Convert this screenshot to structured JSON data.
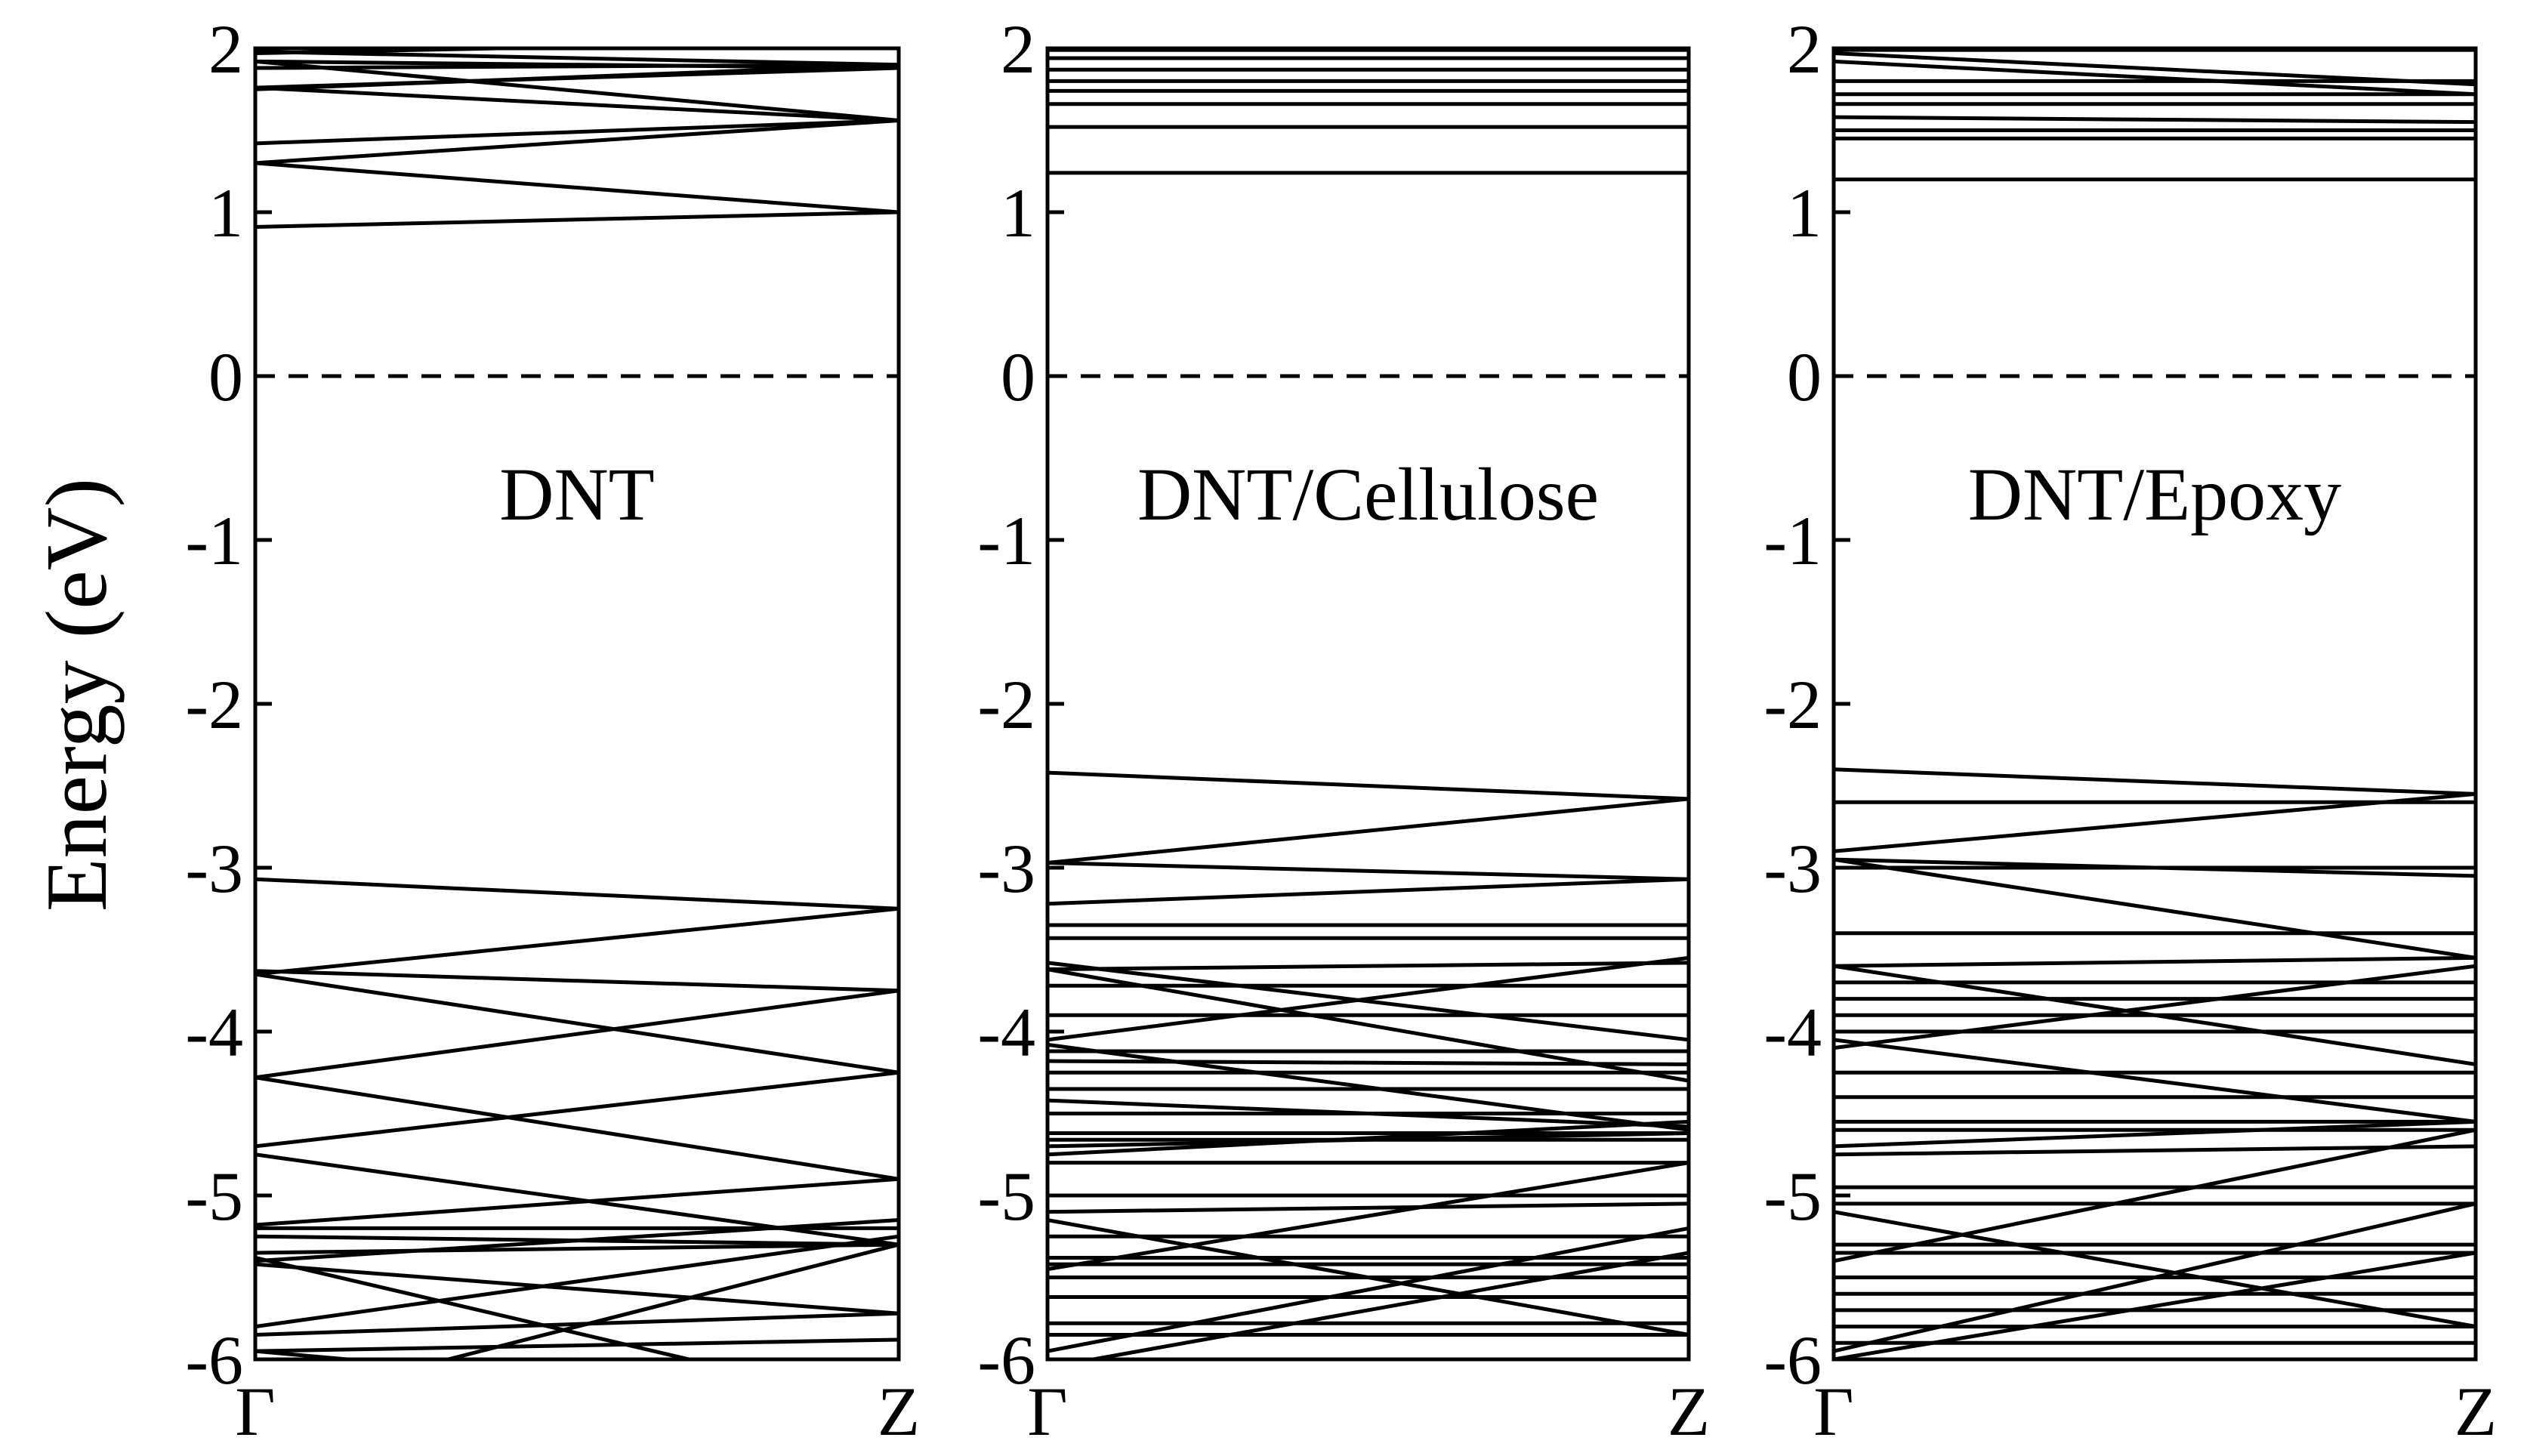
{
  "colors": {
    "line": "#000000",
    "background": "#ffffff"
  },
  "chart_data": [
    {
      "type": "line",
      "title": "DNT",
      "ylabel": "Energy (eV)",
      "xlabel": "",
      "x_ticks": [
        "Γ",
        "Z"
      ],
      "ylim": [
        -6,
        2
      ],
      "y_ticks": [
        "2",
        "1",
        "0",
        "-1",
        "-2",
        "-3",
        "-4",
        "-5",
        "-6"
      ],
      "fermi_level": 0,
      "fermi_style": "dashed",
      "bands": [
        [
          0.91,
          1.0
        ],
        [
          1.3,
          1.0
        ],
        [
          1.3,
          1.56
        ],
        [
          1.42,
          1.56
        ],
        [
          1.76,
          1.56
        ],
        [
          1.76,
          1.88
        ],
        [
          1.92,
          1.88
        ],
        [
          1.92,
          1.56
        ],
        [
          1.98,
          1.9
        ],
        [
          1.97,
          2.05
        ],
        [
          1.88,
          1.9
        ],
        [
          1.75,
          1.9
        ],
        [
          -3.07,
          -3.25
        ],
        [
          -3.65,
          -3.25
        ],
        [
          -3.63,
          -3.75
        ],
        [
          -3.65,
          -4.25
        ],
        [
          -4.28,
          -3.75
        ],
        [
          -4.28,
          -4.9
        ],
        [
          -4.7,
          -4.25
        ],
        [
          -4.75,
          -5.3
        ],
        [
          -5.18,
          -4.9
        ],
        [
          -5.2,
          -5.2
        ],
        [
          -5.25,
          -5.3
        ],
        [
          -5.35,
          -5.3
        ],
        [
          -5.4,
          -5.15
        ],
        [
          -5.42,
          -5.72
        ],
        [
          -5.38,
          -6.3
        ],
        [
          -5.8,
          -5.25
        ],
        [
          -5.85,
          -5.72
        ],
        [
          -5.95,
          -6.3
        ],
        [
          -5.95,
          -5.88
        ],
        [
          -6.3,
          -5.3
        ]
      ]
    },
    {
      "type": "line",
      "title": "DNT/Cellulose",
      "ylabel": "",
      "xlabel": "",
      "x_ticks": [
        "Γ",
        "Z"
      ],
      "ylim": [
        -6,
        2
      ],
      "y_ticks": [
        "2",
        "1",
        "0",
        "-1",
        "-2",
        "-3",
        "-4",
        "-5",
        "-6"
      ],
      "fermi_level": 0,
      "fermi_style": "dashed",
      "bands": [
        [
          1.24,
          1.24
        ],
        [
          1.52,
          1.52
        ],
        [
          1.66,
          1.66
        ],
        [
          1.74,
          1.74
        ],
        [
          1.8,
          1.8
        ],
        [
          1.87,
          1.87
        ],
        [
          1.94,
          1.94
        ],
        [
          1.99,
          1.99
        ],
        [
          -2.42,
          -2.58
        ],
        [
          -2.97,
          -2.58
        ],
        [
          -2.97,
          -3.07
        ],
        [
          -3.22,
          -3.07
        ],
        [
          -3.35,
          -3.35
        ],
        [
          -3.43,
          -3.43
        ],
        [
          -3.62,
          -3.58
        ],
        [
          -3.62,
          -4.3
        ],
        [
          -3.58,
          -4.05
        ],
        [
          -3.72,
          -3.72
        ],
        [
          -3.9,
          -3.9
        ],
        [
          -4.05,
          -3.55
        ],
        [
          -4.08,
          -4.6
        ],
        [
          -4.12,
          -4.12
        ],
        [
          -4.18,
          -4.2
        ],
        [
          -4.25,
          -4.25
        ],
        [
          -4.35,
          -4.35
        ],
        [
          -4.42,
          -4.58
        ],
        [
          -4.5,
          -4.5
        ],
        [
          -4.62,
          -4.62
        ],
        [
          -4.66,
          -4.66
        ],
        [
          -4.7,
          -4.62
        ],
        [
          -4.75,
          -4.55
        ],
        [
          -4.8,
          -4.8
        ],
        [
          -5.1,
          -5.05
        ],
        [
          -5.15,
          -5.85
        ],
        [
          -5.0,
          -5.0
        ],
        [
          -5.25,
          -5.25
        ],
        [
          -5.38,
          -5.38
        ],
        [
          -5.42,
          -5.42
        ],
        [
          -5.45,
          -4.8
        ],
        [
          -5.5,
          -5.5
        ],
        [
          -5.62,
          -5.62
        ],
        [
          -5.78,
          -5.78
        ],
        [
          -5.85,
          -5.85
        ],
        [
          -5.95,
          -5.2
        ],
        [
          -6.05,
          -5.35
        ]
      ]
    },
    {
      "type": "line",
      "title": "DNT/Epoxy",
      "ylabel": "",
      "xlabel": "",
      "x_ticks": [
        "Γ",
        "Z"
      ],
      "ylim": [
        -6,
        2
      ],
      "y_ticks": [
        "2",
        "1",
        "0",
        "-1",
        "-2",
        "-3",
        "-4",
        "-5",
        "-6"
      ],
      "fermi_level": 0,
      "fermi_style": "dashed",
      "bands": [
        [
          1.2,
          1.2
        ],
        [
          1.45,
          1.45
        ],
        [
          1.5,
          1.5
        ],
        [
          1.58,
          1.55
        ],
        [
          1.66,
          1.66
        ],
        [
          1.72,
          1.72
        ],
        [
          1.8,
          1.8
        ],
        [
          1.92,
          1.72
        ],
        [
          1.97,
          1.78
        ],
        [
          1.99,
          1.99
        ],
        [
          -2.4,
          -2.55
        ],
        [
          -2.6,
          -2.6
        ],
        [
          -2.9,
          -2.55
        ],
        [
          -2.95,
          -3.05
        ],
        [
          -2.95,
          -3.55
        ],
        [
          -3.0,
          -3.0
        ],
        [
          -3.4,
          -3.4
        ],
        [
          -3.6,
          -3.55
        ],
        [
          -3.6,
          -4.2
        ],
        [
          -3.7,
          -3.7
        ],
        [
          -3.8,
          -3.8
        ],
        [
          -3.9,
          -3.9
        ],
        [
          -4.0,
          -4.0
        ],
        [
          -4.05,
          -4.55
        ],
        [
          -4.1,
          -3.6
        ],
        [
          -4.25,
          -4.25
        ],
        [
          -4.4,
          -4.4
        ],
        [
          -4.55,
          -4.55
        ],
        [
          -4.6,
          -4.6
        ],
        [
          -4.7,
          -4.55
        ],
        [
          -4.75,
          -4.7
        ],
        [
          -4.95,
          -4.95
        ],
        [
          -5.05,
          -5.05
        ],
        [
          -5.1,
          -5.8
        ],
        [
          -5.3,
          -5.3
        ],
        [
          -5.35,
          -5.35
        ],
        [
          -5.4,
          -4.6
        ],
        [
          -5.5,
          -5.5
        ],
        [
          -5.6,
          -5.6
        ],
        [
          -5.7,
          -5.7
        ],
        [
          -5.8,
          -5.8
        ],
        [
          -5.9,
          -5.9
        ],
        [
          -5.95,
          -5.05
        ],
        [
          -6.0,
          -5.35
        ]
      ]
    }
  ]
}
